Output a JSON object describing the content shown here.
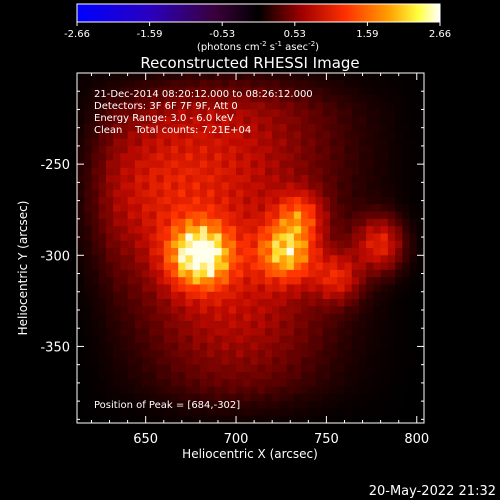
{
  "colorbar": {
    "ticks": [
      "-2.66",
      "-1.59",
      "-0.53",
      "0.53",
      "1.59",
      "2.66"
    ],
    "unit_label": "(photons cm",
    "unit_exp1": "-2",
    "unit_mid": " s",
    "unit_exp2": "-1",
    "unit_tail": " asec",
    "unit_exp3": "-2",
    "unit_close": ")"
  },
  "chart_data": {
    "type": "heatmap",
    "title": "Reconstructed RHESSI Image",
    "xlabel": "Heliocentric X (arcsec)",
    "ylabel": "Heliocentric Y (arcsec)",
    "xlim": [
      612,
      804
    ],
    "ylim": [
      -392,
      -200
    ],
    "xticks": [
      "650",
      "700",
      "750",
      "800"
    ],
    "yticks": [
      "-250",
      "-300",
      "-350"
    ],
    "xtick_values": [
      650,
      700,
      750,
      800
    ],
    "ytick_values": [
      -250,
      -300,
      -350
    ],
    "color_scale": [
      "#0000ff",
      "#000000",
      "#ff0000",
      "#ffff00",
      "#ffffff"
    ],
    "annotations": {
      "line1": "21-Dec-2014 08:20:12.000 to 08:26:12.000",
      "line2": "Detectors: 3F 6F 7F 9F, Att 0",
      "line3": "Energy Range: 3.0 - 6.0 keV",
      "line4": "Clean    Total counts: 7.21E+04",
      "peak": "Position of Peak = [684,-302]"
    },
    "sources": [
      {
        "x": 680,
        "y": -300,
        "sigma": 12,
        "amp": 1.0
      },
      {
        "x": 728,
        "y": -298,
        "sigma": 11,
        "amp": 0.78
      },
      {
        "x": 780,
        "y": -294,
        "sigma": 10,
        "amp": 0.45
      },
      {
        "x": 735,
        "y": -278,
        "sigma": 9,
        "amp": 0.45
      },
      {
        "x": 756,
        "y": -312,
        "sigma": 9,
        "amp": 0.4
      },
      {
        "x": 700,
        "y": -240,
        "sigma": 40,
        "amp": 0.3
      },
      {
        "x": 655,
        "y": -265,
        "sigma": 30,
        "amp": 0.3
      },
      {
        "x": 700,
        "y": -330,
        "sigma": 35,
        "amp": 0.32
      }
    ]
  },
  "timestamp": "20-May-2022 21:32"
}
